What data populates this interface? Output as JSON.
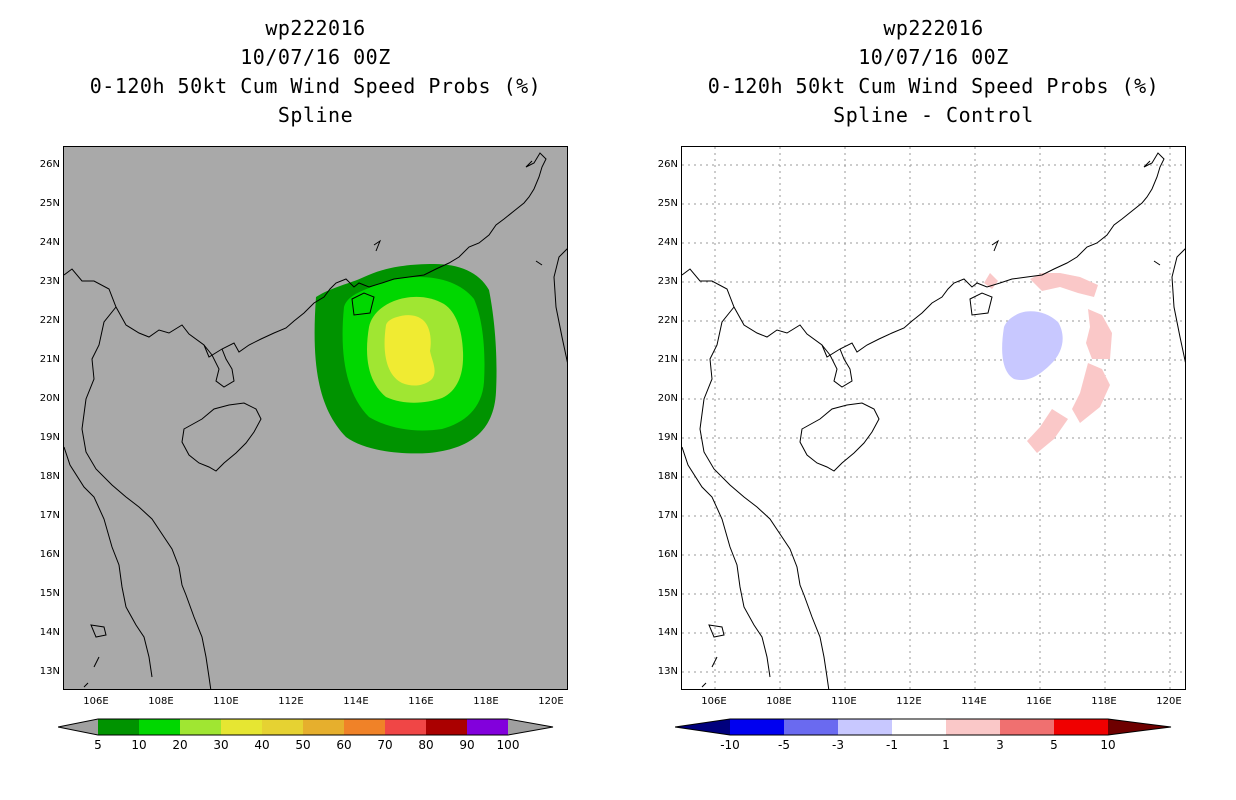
{
  "left": {
    "title_lines": [
      "wp222016",
      "10/07/16 00Z",
      "0-120h 50kt Cum Wind Speed Probs (%)",
      "Spline"
    ],
    "colorbar": {
      "colors": [
        "#009300",
        "#00d700",
        "#a0e632",
        "#e6e632",
        "#e6d232",
        "#e6af2d",
        "#f08228",
        "#f04646",
        "#aa0000",
        "#8200dc"
      ],
      "labels": [
        "5",
        "10",
        "20",
        "30",
        "40",
        "50",
        "60",
        "70",
        "80",
        "90",
        "100"
      ],
      "end_color": "#a0a0a0"
    }
  },
  "right": {
    "title_lines": [
      "wp222016",
      "10/07/16 00Z",
      "0-120h 50kt Cum Wind Speed Probs (%)",
      "Spline - Control"
    ],
    "colorbar": {
      "colors": [
        "#0000f0",
        "#6a6af0",
        "#c8c8ff",
        "#ffffff",
        "#fac8c8",
        "#f07070",
        "#f00000"
      ],
      "labels": [
        "-10",
        "-5",
        "-3",
        "-1",
        "1",
        "3",
        "5",
        "10"
      ],
      "low_end_color": "#00007d",
      "high_end_color": "#6e0000"
    }
  },
  "lat_labels": [
    "26N",
    "25N",
    "24N",
    "23N",
    "22N",
    "21N",
    "20N",
    "19N",
    "18N",
    "17N",
    "16N",
    "15N",
    "14N",
    "13N"
  ],
  "lon_labels": [
    "106E",
    "108E",
    "110E",
    "112E",
    "114E",
    "116E",
    "118E",
    "120E"
  ],
  "map_extent": {
    "lon_min": 105,
    "lon_max": 120.5,
    "lat_min": 12.5,
    "lat_max": 26.5
  }
}
